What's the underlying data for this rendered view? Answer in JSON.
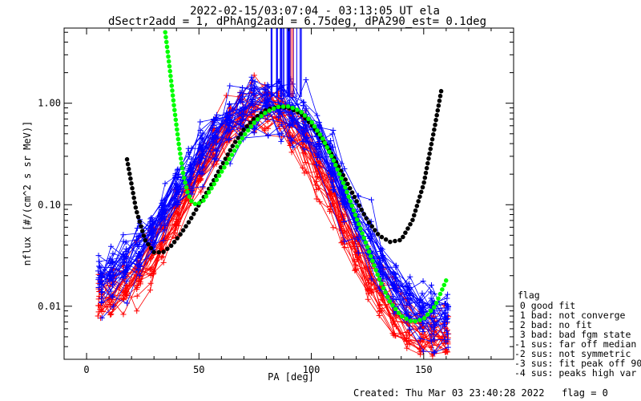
{
  "chart_data": {
    "type": "line",
    "title_line1": "2022-02-15/03:07:04 - 03:13:05 UT ela",
    "title_line2": "dSectr2add = 1, dPhAng2add = 6.75deg, dPA290_est=   0.1deg",
    "xlabel": "PA [deg]",
    "ylabel": "nflux [#/(cm^2 s sr MeV)]",
    "xlim": [
      -10,
      190
    ],
    "ylim": [
      0.003,
      5.5
    ],
    "yscale": "log",
    "x_ticks": [
      0,
      50,
      100,
      150
    ],
    "x_tick_labels": [
      "0",
      "50",
      "100",
      "150"
    ],
    "y_ticks": [
      0.01,
      0.1,
      1.0
    ],
    "y_tick_labels": [
      "0.01",
      "0.10",
      "1.00"
    ],
    "grid": false,
    "colors": {
      "red": "#ff0000",
      "blue": "#0000ff",
      "black": "#000000",
      "green": "#00ff00"
    },
    "pa_bins": [
      6,
      11,
      17,
      23,
      29,
      34,
      40,
      46,
      51,
      57,
      63,
      69,
      74,
      80,
      86,
      91,
      97,
      103,
      109,
      114,
      120,
      126,
      131,
      137,
      143,
      149,
      154,
      160
    ],
    "red_series_example": [
      0.012,
      0.013,
      0.015,
      0.02,
      0.03,
      0.05,
      0.08,
      0.13,
      0.22,
      0.35,
      0.55,
      0.75,
      0.85,
      0.85,
      0.75,
      0.58,
      0.38,
      0.22,
      0.12,
      0.065,
      0.035,
      0.02,
      0.012,
      0.008,
      0.006,
      0.005,
      0.005,
      0.005
    ],
    "blue_series_example": [
      0.018,
      0.02,
      0.025,
      0.035,
      0.05,
      0.08,
      0.13,
      0.2,
      0.32,
      0.48,
      0.65,
      0.8,
      0.9,
      0.95,
      0.9,
      0.78,
      0.6,
      0.4,
      0.24,
      0.13,
      0.07,
      0.04,
      0.024,
      0.015,
      0.011,
      0.009,
      0.008,
      0.008
    ],
    "fit_black": {
      "x": [
        18,
        22,
        26,
        30,
        34,
        38,
        42,
        46,
        50,
        55,
        60,
        65,
        70,
        75,
        80,
        85,
        90,
        95,
        100,
        105,
        110,
        115,
        120,
        125,
        130,
        135,
        140,
        145,
        150,
        155,
        158
      ],
      "y": [
        0.28,
        0.09,
        0.045,
        0.034,
        0.034,
        0.04,
        0.052,
        0.07,
        0.1,
        0.15,
        0.24,
        0.38,
        0.55,
        0.72,
        0.86,
        0.92,
        0.9,
        0.8,
        0.62,
        0.44,
        0.29,
        0.18,
        0.11,
        0.07,
        0.05,
        0.043,
        0.045,
        0.07,
        0.16,
        0.6,
        1.4
      ]
    },
    "fit_green": {
      "x": [
        35,
        37,
        39,
        41,
        43,
        45,
        47,
        49,
        52,
        56,
        60,
        65,
        70,
        75,
        80,
        85,
        90,
        95,
        100,
        105,
        110,
        115,
        120,
        125,
        130,
        135,
        140,
        145,
        150,
        155,
        160
      ],
      "y": [
        5.0,
        2.2,
        0.9,
        0.4,
        0.2,
        0.13,
        0.105,
        0.1,
        0.11,
        0.15,
        0.21,
        0.32,
        0.48,
        0.66,
        0.82,
        0.92,
        0.93,
        0.84,
        0.66,
        0.45,
        0.27,
        0.15,
        0.075,
        0.038,
        0.019,
        0.011,
        0.008,
        0.007,
        0.0075,
        0.01,
        0.018
      ]
    },
    "legend": {
      "title": "flag",
      "entries": [
        " 0 good fit",
        " 1 bad: not converge",
        " 2 bad: no fit",
        " 3 bad: bad fgm state",
        "-1 sus: far off median",
        "-2 sus: not symmetric",
        "-3 sus: fit peak off 90",
        "-4 sus: peaks high var"
      ],
      "placement": "right"
    },
    "footer": "Created: Thu Mar 03 23:40:28 2022   flag = 0"
  }
}
